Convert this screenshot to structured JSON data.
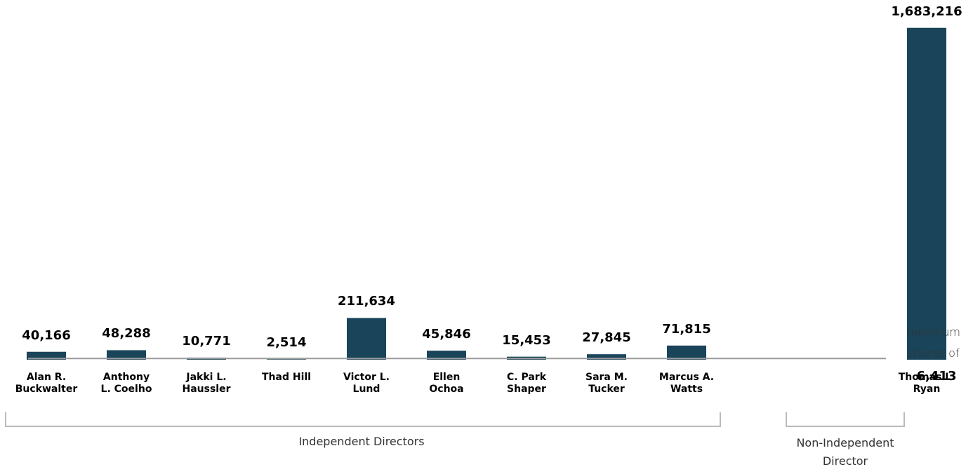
{
  "chart_data": {
    "type": "bar",
    "categories": [
      "Alan R.\nBuckwalter",
      "Anthony\nL. Coelho",
      "Jakki L.\nHaussler",
      "Thad Hill",
      "Victor L.\nLund",
      "Ellen\nOchoa",
      "C. Park\nShaper",
      "Sara M.\nTucker",
      "Marcus A.\nWatts",
      "Thomas L.\nRyan"
    ],
    "values": [
      40166,
      48288,
      10771,
      2514,
      211634,
      45846,
      15453,
      27845,
      71815,
      1683216
    ],
    "value_labels": [
      "40,166",
      "48,288",
      "10,771",
      "2,514",
      "211,634",
      "45,846",
      "15,453",
      "27,845",
      "71,815",
      "1,683,216"
    ],
    "color": "#1a4459",
    "ylim": [
      0,
      1700000
    ],
    "reference_line": {
      "value": 6413,
      "label": "minimum shares of",
      "value_label": "6,413",
      "color": "#999999"
    },
    "groups": [
      "Independent Directors",
      "Non-Independent Director"
    ]
  }
}
